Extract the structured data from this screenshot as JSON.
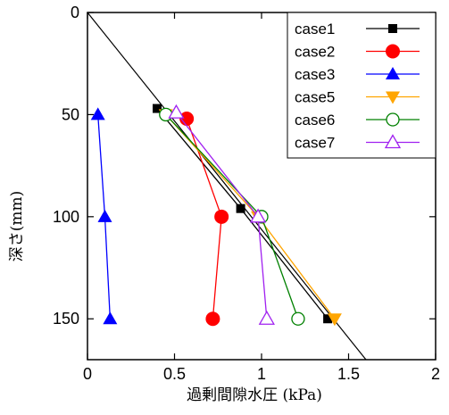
{
  "chart_data": {
    "type": "scatter",
    "title": "",
    "xlabel": "過剰間隙水圧 (kPa)",
    "ylabel": "深さ(mm)",
    "xlim": [
      0,
      2
    ],
    "ylim": [
      0,
      170
    ],
    "y_inverted": true,
    "x_ticks": [
      "0",
      "0.5",
      "1",
      "1.5",
      "2"
    ],
    "x_tick_values": [
      0,
      0.5,
      1,
      1.5,
      2
    ],
    "y_ticks": [
      "0",
      "50",
      "100",
      "150"
    ],
    "y_tick_values": [
      0,
      50,
      100,
      150
    ],
    "grid": false,
    "legend_position": "top-right",
    "reference_line": {
      "x": [
        0,
        1.6
      ],
      "y": [
        0,
        170
      ],
      "color": "#000000"
    },
    "series": [
      {
        "name": "case1",
        "color": "#000000",
        "marker": "square-filled",
        "x": [
          0.4,
          0.88,
          1.38
        ],
        "y": [
          47,
          96,
          150
        ]
      },
      {
        "name": "case2",
        "color": "#ff0000",
        "marker": "circle-filled",
        "x": [
          0.57,
          0.77,
          0.72
        ],
        "y": [
          52,
          100,
          150
        ]
      },
      {
        "name": "case3",
        "color": "#0000ff",
        "marker": "triangle-up-filled",
        "x": [
          0.06,
          0.1,
          0.13
        ],
        "y": [
          50,
          100,
          150
        ]
      },
      {
        "name": "case5",
        "color": "#ffa500",
        "marker": "triangle-down-filled",
        "x": [
          0.45,
          0.98,
          1.42
        ],
        "y": [
          50,
          100,
          150
        ]
      },
      {
        "name": "case6",
        "color": "#008000",
        "marker": "circle-open",
        "x": [
          0.45,
          1.0,
          1.21
        ],
        "y": [
          50,
          100,
          150
        ]
      },
      {
        "name": "case7",
        "color": "#a020f0",
        "marker": "triangle-up-open",
        "x": [
          0.51,
          0.98,
          1.03
        ],
        "y": [
          49,
          100,
          150
        ]
      }
    ]
  }
}
